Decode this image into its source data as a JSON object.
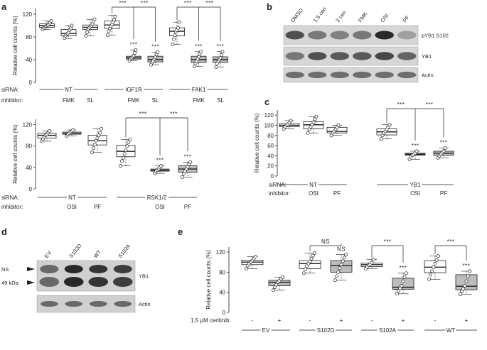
{
  "panels": {
    "a": "a",
    "b": "b",
    "c": "c",
    "d": "d",
    "e": "e"
  },
  "y_axis_label": "Relative cell counts (%)",
  "chart_data": [
    {
      "id": "a_top",
      "type": "box",
      "ylim": [
        0,
        130
      ],
      "yticks": [
        0,
        40,
        80,
        120
      ],
      "ylabel": "Relative cell counts (%)",
      "rows": [
        {
          "label": "siRNA:",
          "groups": [
            {
              "text": "NT",
              "span": [
                0,
                2
              ]
            },
            {
              "text": "IGF1R",
              "span": [
                3,
                5
              ]
            },
            {
              "text": "FAK1",
              "span": [
                6,
                8
              ]
            }
          ]
        },
        {
          "label": "inhibitor:",
          "values": [
            "",
            "FMK",
            "SL",
            "",
            "FMK",
            "SL",
            "",
            "FMK",
            "SL"
          ]
        }
      ],
      "boxes": [
        {
          "median": 100,
          "q1": 97,
          "q3": 103,
          "min": 93,
          "max": 108,
          "fill": "white",
          "points": [
            93,
            96,
            98,
            99,
            100,
            101,
            103,
            105,
            108
          ]
        },
        {
          "median": 86,
          "q1": 82,
          "q3": 93,
          "min": 77,
          "max": 100,
          "fill": "white",
          "points": [
            78,
            82,
            85,
            86,
            88,
            92,
            95,
            100
          ]
        },
        {
          "median": 97,
          "q1": 93,
          "q3": 101,
          "min": 82,
          "max": 111,
          "fill": "white",
          "points": [
            82,
            88,
            93,
            96,
            98,
            100,
            103,
            107,
            111
          ]
        },
        {
          "median": 101,
          "q1": 95,
          "q3": 108,
          "min": 83,
          "max": 118,
          "fill": "white",
          "points": [
            83,
            90,
            95,
            99,
            102,
            106,
            110,
            116
          ]
        },
        {
          "median": 43,
          "q1": 41,
          "q3": 46,
          "min": 38,
          "max": 57,
          "fill": "grey",
          "points": [
            38,
            41,
            43,
            45,
            47,
            52,
            57
          ],
          "sig": "***"
        },
        {
          "median": 40,
          "q1": 36,
          "q3": 46,
          "min": 31,
          "max": 53,
          "fill": "grey",
          "points": [
            31,
            35,
            38,
            41,
            44,
            49,
            53
          ],
          "sig": "***"
        },
        {
          "median": 90,
          "q1": 82,
          "q3": 96,
          "min": 67,
          "max": 106,
          "fill": "white",
          "points": [
            67,
            76,
            83,
            89,
            92,
            96,
            106
          ]
        },
        {
          "median": 40,
          "q1": 35,
          "q3": 46,
          "min": 28,
          "max": 54,
          "fill": "grey",
          "points": [
            28,
            33,
            37,
            41,
            45,
            50,
            54
          ],
          "sig": "***"
        },
        {
          "median": 40,
          "q1": 35,
          "q3": 45,
          "min": 27,
          "max": 54,
          "fill": "grey",
          "points": [
            27,
            33,
            37,
            40,
            43,
            48,
            54
          ],
          "sig": "***"
        }
      ],
      "brackets": [
        {
          "from": 3,
          "to": [
            4,
            5
          ],
          "label": "***"
        },
        {
          "from": 6,
          "to": [
            7,
            8
          ],
          "label": "***"
        }
      ]
    },
    {
      "id": "a_bottom",
      "type": "box",
      "ylim": [
        0,
        130
      ],
      "yticks": [
        0,
        40,
        80,
        120
      ],
      "ylabel": "Relative cell counts (%)",
      "rows": [
        {
          "label": "siRNA:",
          "groups": [
            {
              "text": "NT",
              "span": [
                0,
                2
              ]
            },
            {
              "text": "RSK1/2",
              "span": [
                3,
                5
              ]
            }
          ]
        },
        {
          "label": "inhibitor:",
          "values": [
            "",
            "OSI",
            "PF",
            "",
            "OSI",
            "PF"
          ]
        }
      ],
      "boxes": [
        {
          "median": 100,
          "q1": 95,
          "q3": 104,
          "min": 89,
          "max": 108,
          "fill": "white",
          "points": [
            89,
            93,
            97,
            100,
            102,
            105,
            108
          ]
        },
        {
          "median": 104,
          "q1": 102,
          "q3": 106,
          "min": 99,
          "max": 110,
          "fill": "white",
          "points": [
            99,
            102,
            104,
            106,
            108,
            110
          ]
        },
        {
          "median": 90,
          "q1": 82,
          "q3": 100,
          "min": 68,
          "max": 112,
          "fill": "white",
          "points": [
            68,
            76,
            83,
            90,
            95,
            100,
            105,
            112
          ]
        },
        {
          "median": 70,
          "q1": 60,
          "q3": 81,
          "min": 43,
          "max": 92,
          "fill": "white",
          "points": [
            43,
            52,
            58,
            65,
            72,
            80,
            87,
            92
          ]
        },
        {
          "median": 35,
          "q1": 33,
          "q3": 37,
          "min": 29,
          "max": 43,
          "fill": "grey",
          "points": [
            29,
            33,
            35,
            37,
            40,
            43
          ],
          "sig": "***"
        },
        {
          "median": 37,
          "q1": 31,
          "q3": 43,
          "min": 22,
          "max": 50,
          "fill": "grey",
          "points": [
            22,
            28,
            33,
            37,
            41,
            46,
            50
          ],
          "sig": "***"
        }
      ],
      "brackets": [
        {
          "from": 3,
          "to": [
            4,
            5
          ],
          "label": "***"
        }
      ]
    },
    {
      "id": "c",
      "type": "box",
      "ylim": [
        0,
        130
      ],
      "yticks": [
        0,
        20,
        40,
        60,
        80,
        100,
        120
      ],
      "ylabel": "Relative cell counts (%)",
      "rows": [
        {
          "label": "siRNA:",
          "groups": [
            {
              "text": "NT",
              "span": [
                0,
                2
              ]
            },
            {
              "text": "YB1",
              "span": [
                3,
                5
              ]
            }
          ]
        },
        {
          "label": "inhibitor:",
          "values": [
            "",
            "OSI",
            "PF",
            "",
            "OSI",
            "PF"
          ]
        }
      ],
      "boxes": [
        {
          "median": 100,
          "q1": 97,
          "q3": 103,
          "min": 93,
          "max": 109,
          "fill": "white",
          "points": [
            93,
            97,
            100,
            102,
            105,
            109
          ]
        },
        {
          "median": 101,
          "q1": 93,
          "q3": 107,
          "min": 85,
          "max": 117,
          "fill": "white",
          "points": [
            85,
            92,
            97,
            101,
            106,
            112,
            117
          ]
        },
        {
          "median": 88,
          "q1": 85,
          "q3": 96,
          "min": 80,
          "max": 100,
          "fill": "white",
          "points": [
            80,
            85,
            88,
            92,
            96,
            100
          ]
        },
        {
          "median": 87,
          "q1": 81,
          "q3": 93,
          "min": 73,
          "max": 101,
          "fill": "white",
          "points": [
            73,
            80,
            85,
            88,
            92,
            96,
            101
          ]
        },
        {
          "median": 43,
          "q1": 41,
          "q3": 45,
          "min": 33,
          "max": 49,
          "fill": "grey",
          "points": [
            33,
            38,
            41,
            43,
            45,
            49
          ],
          "sig": "***"
        },
        {
          "median": 45,
          "q1": 41,
          "q3": 49,
          "min": 36,
          "max": 55,
          "fill": "grey",
          "points": [
            36,
            40,
            43,
            46,
            49,
            55
          ],
          "sig": "***"
        }
      ],
      "brackets": [
        {
          "from": 3,
          "to": [
            4,
            5
          ],
          "label": "***"
        }
      ]
    },
    {
      "id": "e",
      "type": "box",
      "ylim": [
        0,
        130
      ],
      "yticks": [
        0,
        40,
        80,
        120
      ],
      "ylabel": "Relative cell counts (%)",
      "rows": [
        {
          "label": "1.5 µM ceritinib:",
          "values": [
            "-",
            "+",
            "-",
            "+",
            "-",
            "+",
            "-",
            "+"
          ]
        },
        {
          "label": "",
          "groups": [
            {
              "text": "EV",
              "span": [
                0,
                1
              ]
            },
            {
              "text": "S102D",
              "span": [
                2,
                3
              ]
            },
            {
              "text": "S102A",
              "span": [
                4,
                5
              ]
            },
            {
              "text": "WT",
              "span": [
                6,
                7
              ]
            }
          ]
        }
      ],
      "boxes": [
        {
          "median": 100,
          "q1": 95,
          "q3": 104,
          "min": 87,
          "max": 111,
          "fill": "white",
          "points": [
            87,
            93,
            97,
            100,
            103,
            107,
            111
          ]
        },
        {
          "median": 60,
          "q1": 53,
          "q3": 64,
          "min": 44,
          "max": 70,
          "fill": "grey",
          "points": [
            44,
            50,
            55,
            60,
            63,
            67,
            70
          ]
        },
        {
          "median": 97,
          "q1": 87,
          "q3": 103,
          "min": 78,
          "max": 118,
          "fill": "white",
          "points": [
            78,
            86,
            92,
            97,
            101,
            107,
            113,
            118
          ]
        },
        {
          "median": 93,
          "q1": 80,
          "q3": 103,
          "min": 64,
          "max": 115,
          "fill": "grey",
          "points": [
            64,
            72,
            80,
            88,
            95,
            102,
            109,
            115
          ],
          "sig": "NS"
        },
        {
          "median": 95,
          "q1": 91,
          "q3": 98,
          "min": 87,
          "max": 105,
          "fill": "white",
          "points": [
            87,
            91,
            94,
            96,
            99,
            105
          ]
        },
        {
          "median": 50,
          "q1": 46,
          "q3": 68,
          "min": 37,
          "max": 78,
          "fill": "grey",
          "points": [
            37,
            43,
            48,
            53,
            62,
            70,
            78
          ],
          "sig": "***"
        },
        {
          "median": 90,
          "q1": 79,
          "q3": 103,
          "min": 66,
          "max": 112,
          "fill": "white",
          "points": [
            66,
            75,
            82,
            90,
            97,
            104,
            112
          ]
        },
        {
          "median": 52,
          "q1": 45,
          "q3": 75,
          "min": 36,
          "max": 82,
          "fill": "grey",
          "points": [
            36,
            42,
            47,
            53,
            62,
            72,
            82
          ],
          "sig": "***"
        }
      ],
      "brackets": [
        {
          "from": 2,
          "to": [
            3
          ],
          "label": "NS"
        },
        {
          "from": 4,
          "to": [
            5
          ],
          "label": "***"
        },
        {
          "from": 6,
          "to": [
            7
          ],
          "label": "***"
        }
      ]
    }
  ],
  "blot_b": {
    "lanes": [
      "DMSO",
      "1.5 ceri",
      "3 ceri",
      "FMK",
      "OSI",
      "PF"
    ],
    "rows": [
      {
        "label": "pYB1 S102",
        "intensity": [
          0.75,
          0.55,
          0.5,
          0.55,
          0.95,
          0.35
        ]
      },
      {
        "label": "YB1",
        "intensity": [
          0.55,
          0.75,
          0.7,
          0.7,
          0.8,
          0.65
        ]
      },
      {
        "label": "Actin",
        "intensity": [
          0.6,
          0.6,
          0.6,
          0.6,
          0.6,
          0.6
        ]
      }
    ]
  },
  "blot_d": {
    "lanes": [
      "EV",
      "S102D",
      "WT",
      "S102A"
    ],
    "markers": [
      "NS",
      "49 kDa"
    ],
    "rows": [
      {
        "label": "YB1",
        "intensity": [
          0.6,
          0.9,
          0.85,
          0.8
        ]
      },
      {
        "label": "Actin",
        "intensity": [
          0.6,
          0.6,
          0.6,
          0.6
        ]
      }
    ]
  }
}
